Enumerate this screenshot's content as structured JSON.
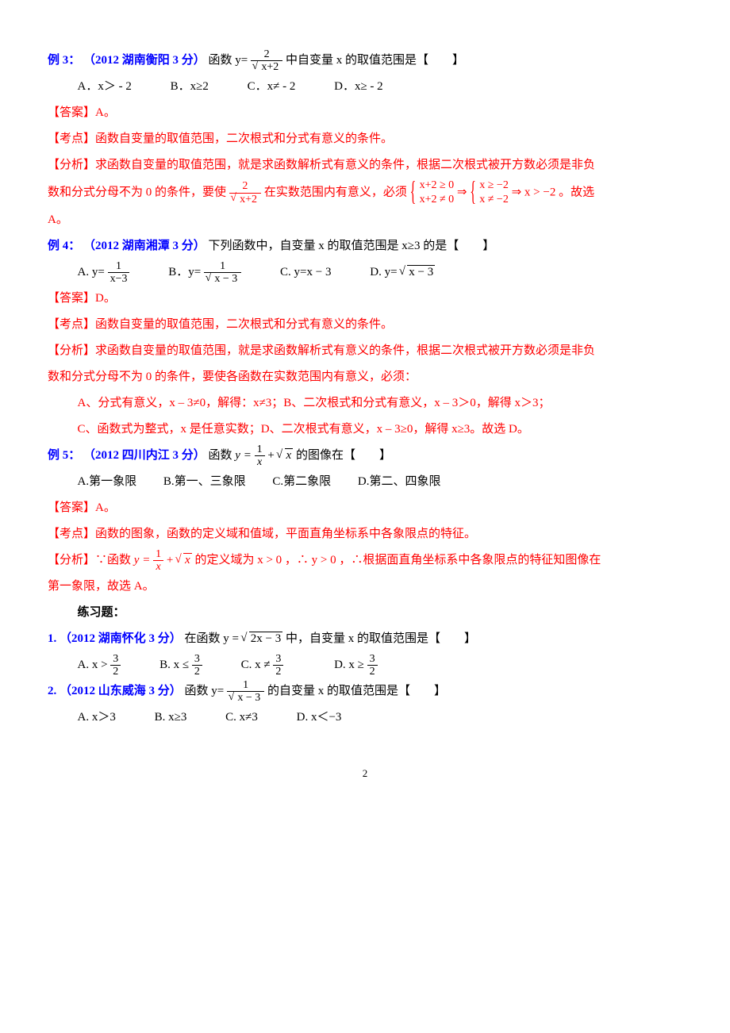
{
  "ex3": {
    "label": "例 3：",
    "source": "（2012 湖南衡阳 3 分）",
    "q_a": "函数 y=",
    "q_b": " 中自变量 x 的取值范围是【　　】",
    "frac_num": "2",
    "frac_den_rad": "x+2",
    "opt_a": "A．x＞ - 2",
    "opt_b": "B．x≥2",
    "opt_c": "C．x≠ - 2",
    "opt_d": "D．x≥ - 2",
    "ans_label": "【答案】",
    "ans": "A。",
    "kd_label": "【考点】",
    "kd": "函数自变量的取值范围，二次根式和分式有意义的条件。",
    "fx_label": "【分析】",
    "fx_a": "求函数自变量的取值范围，就是求函数解析式有意义的条件，根据二次根式被开方数必须是非负",
    "fx_b": "数和分式分母不为 0 的条件，要使 ",
    "fx_c": " 在实数范围内有意义，必须 ",
    "sys1_r1": "x+2 ≥ 0",
    "sys1_r2": "x+2 ≠ 0",
    "sys2_r1": "x ≥ −2",
    "sys2_r2": "x ≠ −2",
    "fx_d": " ⇒ x > −2 。故选",
    "fx_e": "A。"
  },
  "ex4": {
    "label": "例 4：",
    "source": "（2012 湖南湘潭 3 分）",
    "q": "下列函数中，自变量 x 的取值范围是 x≥3 的是【　　】",
    "opt_a_l": "A. ",
    "opt_a_y": "y=",
    "opt_a_num": "1",
    "opt_a_den": "x−3",
    "opt_b_l": "B．",
    "opt_b_num": "1",
    "opt_b_rad": "x − 3",
    "opt_c": "C. y=x − 3",
    "opt_d_l": "D. y=",
    "opt_d_rad": "x − 3",
    "ans_label": "【答案】",
    "ans": "D。",
    "kd_label": "【考点】",
    "kd": "函数自变量的取值范围，二次根式和分式有意义的条件。",
    "fx_label": "【分析】",
    "fx_a": "求函数自变量的取值范围，就是求函数解析式有意义的条件，根据二次根式被开方数必须是非负",
    "fx_b": "数和分式分母不为 0 的条件，要使各函数在实数范围内有意义，必须：",
    "fx_c": "A、分式有意义，x – 3≠0，解得：x≠3；B、二次根式和分式有意义，x – 3＞0，解得 x＞3；",
    "fx_d": "C、函数式为整式，x 是任意实数；D、二次根式有意义，x – 3≥0，解得 x≥3。故选 D。"
  },
  "ex5": {
    "label": "例 5：",
    "source": "（2012 四川内江 3 分）",
    "q_a": "函数 ",
    "q_y": "y = ",
    "q_num": "1",
    "q_den": "x",
    "q_plus": " + ",
    "q_rad": "x",
    "q_b": " 的图像在【　　】",
    "opt_a": "A.第一象限",
    "opt_b": "B.第一、三象限",
    "opt_c": "C.第二象限",
    "opt_d": "D.第二、四象限",
    "ans_label": "【答案】",
    "ans": "A。",
    "kd_label": "【考点】",
    "kd": "函数的图象，函数的定义域和值域，平面直角坐标系中各象限点的特征。",
    "fx_label": "【分析】",
    "fx_a": "∵函数 ",
    "fx_b": " 的定义域为 x > 0 ，∴ y > 0 ，∴根据面直角坐标系中各象限点的特征知图像在",
    "fx_c": "第一象限，故选 A。"
  },
  "practice": {
    "title": "练习题：",
    "p1": {
      "num": "1. ",
      "source": "（2012 湖南怀化 3 分）",
      "q_a": "在函数 y = ",
      "q_rad": "2x − 3",
      "q_b": " 中，自变量 x 的取值范围是【　　】",
      "opt_a_l": "A.  x >",
      "opt_b_l": "B. x ≤",
      "opt_c_l": "C.  x ≠",
      "opt_d_l": "D. x ≥",
      "frac_num": "3",
      "frac_den": "2"
    },
    "p2": {
      "num": "2. ",
      "source": "（2012 山东威海 3 分）",
      "q_a": "函数 y=",
      "q_num": "1",
      "q_rad": "x − 3",
      "q_b": " 的自变量 x 的取值范围是【　　】",
      "opt_a": "A. x＞3",
      "opt_b": "B. x≥3",
      "opt_c": "C. x≠3",
      "opt_d": "D. x＜−3"
    }
  },
  "pagenum": "2"
}
